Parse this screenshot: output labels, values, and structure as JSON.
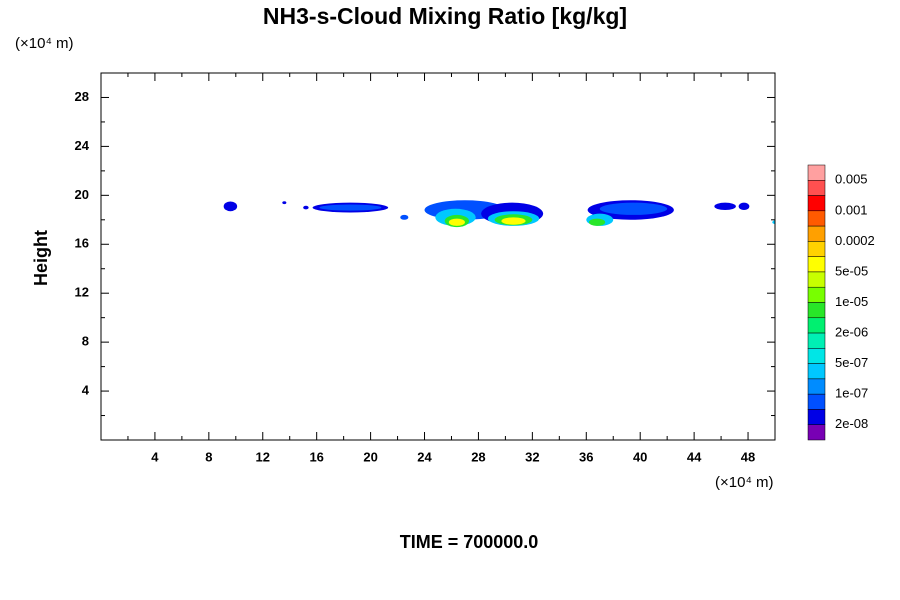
{
  "chart_data": {
    "type": "contour",
    "title": "NH3-s-Cloud Mixing Ratio [kg/kg]",
    "y_label": "Height",
    "y_unit": "(×10⁴ m)",
    "x_unit": "(×10⁴ m)",
    "footer": "TIME = 700000.0",
    "xlim": [
      0,
      50
    ],
    "ylim": [
      0,
      30
    ],
    "xticks": [
      4,
      8,
      12,
      16,
      20,
      24,
      28,
      32,
      36,
      40,
      44,
      48
    ],
    "yticks": [
      4,
      8,
      12,
      16,
      20,
      24,
      28
    ],
    "xminorticks": [
      2,
      6,
      10,
      14,
      18,
      22,
      26,
      30,
      34,
      38,
      42,
      46,
      50
    ],
    "yminorticks": [
      2,
      6,
      10,
      14,
      18,
      22,
      26,
      30
    ],
    "colorbar": {
      "colors": [
        "#ffa0a0",
        "#ff5050",
        "#ff0000",
        "#ff5a00",
        "#ffa000",
        "#ffd200",
        "#ffff00",
        "#c8ff00",
        "#78ff00",
        "#28e628",
        "#00f070",
        "#00f0b4",
        "#00e6e6",
        "#00c8ff",
        "#008cff",
        "#0050ff",
        "#0000e6",
        "#7800b4"
      ],
      "ticks": [
        0.005,
        0.001,
        0.0002,
        {
          "value": 5e-05,
          "label": "5e-05"
        },
        {
          "value": 1e-05,
          "label": "1e-05"
        },
        {
          "value": 2e-06,
          "label": "2e-06"
        },
        {
          "value": 5e-07,
          "label": "5e-07"
        },
        {
          "value": 1e-07,
          "label": "1e-07"
        },
        {
          "value": 2e-08,
          "label": "2e-08"
        }
      ]
    },
    "cells": [
      {
        "x": 9.6,
        "y": 19.1,
        "rx": 0.5,
        "ry": 0.4,
        "level": 3e-08
      },
      {
        "x": 13.6,
        "y": 19.4,
        "rx": 0.15,
        "ry": 0.12,
        "level": 3e-08
      },
      {
        "x": 15.2,
        "y": 19.0,
        "rx": 0.2,
        "ry": 0.15,
        "level": 3e-08
      },
      {
        "x": 18.5,
        "y": 19.0,
        "rx": 2.8,
        "ry": 0.4,
        "level": 3e-08
      },
      {
        "x": 18.5,
        "y": 19.0,
        "rx": 2.3,
        "ry": 0.25,
        "level": 1e-07
      },
      {
        "x": 22.5,
        "y": 18.2,
        "rx": 0.3,
        "ry": 0.2,
        "level": 1e-07
      },
      {
        "x": 27.0,
        "y": 18.8,
        "rx": 3.0,
        "ry": 0.8,
        "level": 1e-07
      },
      {
        "x": 26.3,
        "y": 18.2,
        "rx": 1.5,
        "ry": 0.7,
        "level": 5e-07
      },
      {
        "x": 26.4,
        "y": 17.9,
        "rx": 0.9,
        "ry": 0.5,
        "level": 1e-05
      },
      {
        "x": 26.4,
        "y": 17.8,
        "rx": 0.6,
        "ry": 0.3,
        "level": 0.0001
      },
      {
        "x": 30.5,
        "y": 18.5,
        "rx": 2.3,
        "ry": 0.9,
        "level": 3e-08
      },
      {
        "x": 30.6,
        "y": 18.1,
        "rx": 1.9,
        "ry": 0.6,
        "level": 5e-07
      },
      {
        "x": 30.6,
        "y": 18.0,
        "rx": 1.4,
        "ry": 0.45,
        "level": 1e-05
      },
      {
        "x": 30.6,
        "y": 17.9,
        "rx": 0.9,
        "ry": 0.3,
        "level": 0.0001
      },
      {
        "x": 39.3,
        "y": 18.8,
        "rx": 3.2,
        "ry": 0.8,
        "level": 3e-08
      },
      {
        "x": 39.5,
        "y": 18.9,
        "rx": 2.5,
        "ry": 0.5,
        "level": 1e-07
      },
      {
        "x": 37.0,
        "y": 18.0,
        "rx": 1.0,
        "ry": 0.5,
        "level": 5e-07
      },
      {
        "x": 36.8,
        "y": 17.8,
        "rx": 0.6,
        "ry": 0.3,
        "level": 5e-06
      },
      {
        "x": 46.3,
        "y": 19.1,
        "rx": 0.8,
        "ry": 0.3,
        "level": 3e-08
      },
      {
        "x": 47.7,
        "y": 19.1,
        "rx": 0.4,
        "ry": 0.3,
        "level": 3e-08
      },
      {
        "x": 50.0,
        "y": 17.8,
        "rx": 0.2,
        "ry": 0.15,
        "level": 5e-07
      }
    ]
  }
}
